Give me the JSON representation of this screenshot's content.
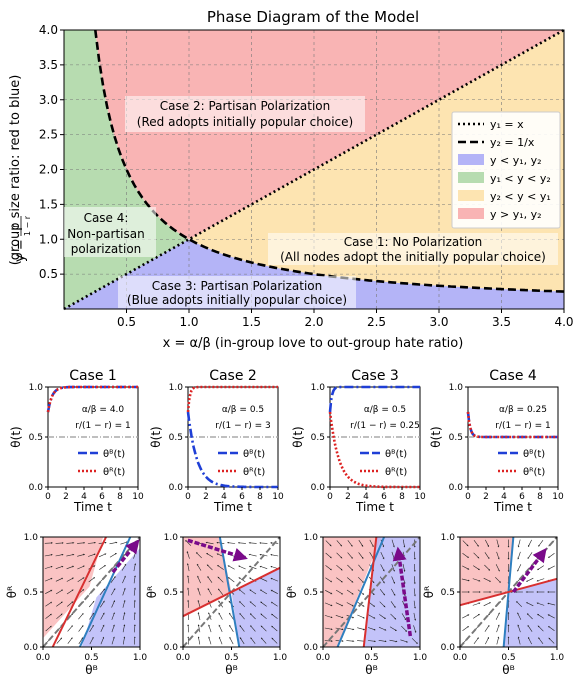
{
  "colors": {
    "case1": "#fde4b1",
    "case2": "#f9b4b4",
    "case3": "#b4b4f7",
    "case4": "#b7dcb0",
    "thetaB": "#1f3fd6",
    "thetaR": "#dd2222",
    "midline": "#aaaaaa",
    "arrow": "#7a0a8a"
  },
  "chart_data": [
    {
      "type": "area",
      "title": "Phase Diagram of the Model",
      "xlabel": "x = α/β (in-group love to out-group hate ratio)",
      "ylabel": "y = r/(1−r) (group size ratio: red to blue)",
      "xlim": [
        0,
        4
      ],
      "ylim": [
        0,
        4
      ],
      "x_ticks": [
        "0.5",
        "1.0",
        "1.5",
        "2.0",
        "2.5",
        "3.0",
        "3.5",
        "4.0"
      ],
      "y_ticks": [
        "0.5",
        "1.0",
        "1.5",
        "2.0",
        "2.5",
        "3.0",
        "3.5",
        "4.0"
      ],
      "grid": true,
      "curves": [
        {
          "name": "y1 = x",
          "style": "dotted",
          "function": "x"
        },
        {
          "name": "y2 = 1/x",
          "style": "dashed",
          "function": "1/x"
        }
      ],
      "legend": {
        "placement": "right",
        "entries": [
          {
            "label": "y₁ = x",
            "kind": "dotted"
          },
          {
            "label": "y₂ = 1/x",
            "kind": "dashed"
          },
          {
            "label": "y < y₁, y₂",
            "kind": "patch",
            "color": "#b4b4f7"
          },
          {
            "label": "y₁ < y < y₂",
            "kind": "patch",
            "color": "#b7dcb0"
          },
          {
            "label": "y₂ < y < y₁",
            "kind": "patch",
            "color": "#fde4b1"
          },
          {
            "label": "y > y₁, y₂",
            "kind": "patch",
            "color": "#f9b4b4"
          }
        ]
      },
      "annotations": {
        "case2": [
          "Case 2: Partisan Polarization",
          "(Red adopts initially popular choice)"
        ],
        "case4": [
          "Case 4:",
          "Non-partisan",
          "polarization"
        ],
        "case1": [
          "Case 1: No Polarization",
          "(All nodes adopt the initially popular choice)"
        ],
        "case3": [
          "Case 3: Partisan Polarization",
          "(Blue adopts initially popular choice)"
        ]
      }
    },
    {
      "type": "line",
      "panels": [
        {
          "title": "Case 1",
          "params": [
            "α/β = 4.0",
            "r/(1 − r) = 1"
          ],
          "B_final": 1.0,
          "R_final": 1.0,
          "B_rate": 2.2,
          "R_rate": 2.2
        },
        {
          "title": "Case 2",
          "params": [
            "α/β = 0.5",
            "r/(1 − r) = 3"
          ],
          "B_final": 0.0,
          "R_final": 1.0,
          "B_rate": 1.0,
          "R_rate": 5.0
        },
        {
          "title": "Case 3",
          "params": [
            "α/β = 0.5",
            "r/(1 − r) = 0.25"
          ],
          "B_final": 1.0,
          "R_final": 0.0,
          "B_rate": 5.0,
          "R_rate": 1.0
        },
        {
          "title": "Case 4",
          "params": [
            "α/β = 0.25",
            "r/(1 − r) = 1"
          ],
          "B_final": 0.5,
          "R_final": 0.5,
          "B_rate": 4.0,
          "R_rate": 4.0
        }
      ],
      "start_value": 0.75,
      "xlabel": "Time t",
      "ylabel": "θ(t)",
      "xlim": [
        0,
        10
      ],
      "ylim": [
        0,
        1
      ],
      "x_ticks": [
        "0",
        "2",
        "4",
        "6",
        "8",
        "10"
      ],
      "y_ticks": [
        "0.0",
        "0.5",
        "1.0"
      ],
      "legend": [
        "θᴮ(t)",
        "θᴿ(t)"
      ]
    },
    {
      "type": "scatter",
      "description": "Phase portraits",
      "xlabel": "θᴮ",
      "ylabel": "θᴿ",
      "xlim": [
        0,
        1
      ],
      "ylim": [
        0,
        1
      ],
      "x_ticks": [
        "0.0",
        "0.5",
        "1.0"
      ],
      "y_ticks": [
        "0.0",
        "0.5",
        "1.0"
      ]
    }
  ],
  "labels": {
    "x_axis_main": "x = α/β (in-group love to out-group hate ratio)",
    "y_axis_main": "(group size ratio: red to blue)",
    "time_xlabel": "Time t",
    "time_ylabel": "θ(t)",
    "phase_xlabel": "θᴮ",
    "phase_ylabel": "θᴿ"
  }
}
